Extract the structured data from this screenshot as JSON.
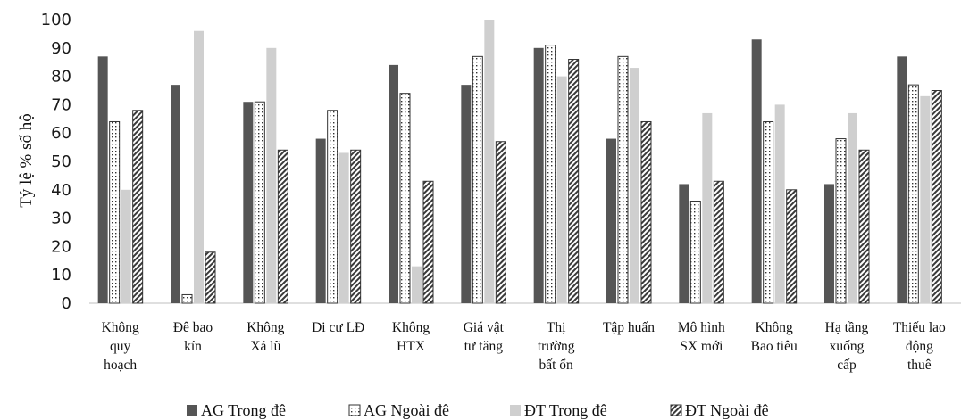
{
  "chart_data": {
    "type": "bar",
    "ylabel": "Tỷ lệ % số hộ",
    "ylim": [
      0,
      100
    ],
    "yticks": [
      "0",
      "10",
      "20",
      "30",
      "40",
      "50",
      "60",
      "70",
      "80",
      "90",
      "100"
    ],
    "grid": false,
    "legend_position": "bottom",
    "categories": [
      [
        "Không",
        "quy",
        "hoạch"
      ],
      [
        "Đê bao",
        "kín"
      ],
      [
        "Không",
        "Xả lũ"
      ],
      [
        "Di cư LĐ"
      ],
      [
        "Không",
        "HTX"
      ],
      [
        "Giá vật",
        "tư tăng"
      ],
      [
        "Thị",
        "trường",
        "bất ổn"
      ],
      [
        "Tập huấn"
      ],
      [
        "Mô hình",
        "SX mới"
      ],
      [
        "Không",
        "Bao tiêu"
      ],
      [
        "Hạ tầng",
        "xuống",
        "cấp"
      ],
      [
        "Thiếu lao",
        "động",
        "thuê"
      ]
    ],
    "series": [
      {
        "name": "AG Trong đê",
        "color": "#555555",
        "pattern": "solid",
        "values": [
          87,
          77,
          71,
          58,
          84,
          77,
          90,
          58,
          42,
          93,
          42,
          87
        ]
      },
      {
        "name": "AG Ngoài đê",
        "color": "#ffffff",
        "pattern": "dotted",
        "values": [
          64,
          3,
          71,
          68,
          74,
          87,
          91,
          87,
          36,
          64,
          58,
          77
        ]
      },
      {
        "name": "ĐT Trong đê",
        "color": "#cfcfcf",
        "pattern": "solid",
        "values": [
          40,
          96,
          90,
          53,
          13,
          100,
          80,
          83,
          67,
          70,
          67,
          73
        ]
      },
      {
        "name": "ĐT Ngoài đê",
        "color": "#ffffff",
        "pattern": "hatched",
        "values": [
          68,
          18,
          54,
          54,
          43,
          57,
          86,
          64,
          43,
          40,
          54,
          75
        ]
      }
    ]
  }
}
